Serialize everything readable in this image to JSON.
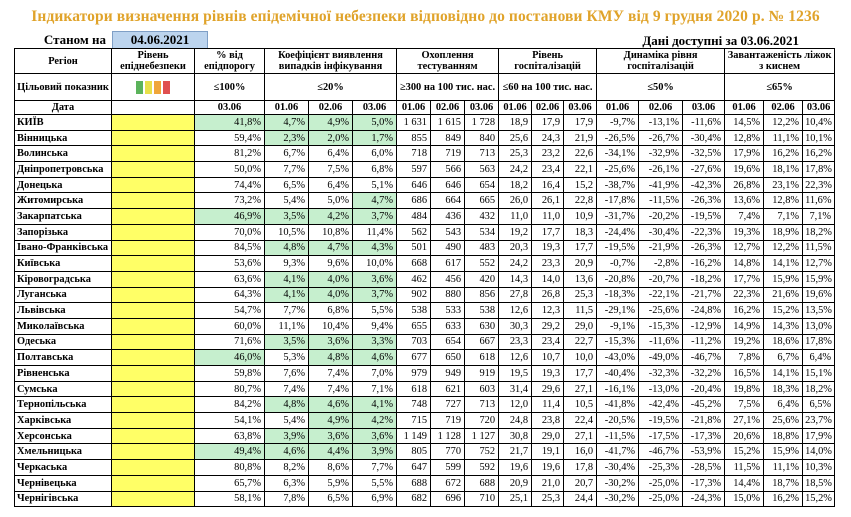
{
  "title": "Індикатори визначення рівнів епідемічної небезпеки відповідно до постанови КМУ від 9 грудня 2020 р. № 1236",
  "as_of_label": "Станом на",
  "as_of_date": "04.06.2021",
  "data_available": "Дані доступні за  03.06.2021",
  "headers": {
    "region": "Регіон",
    "level": "Рівень епіднебезпеки",
    "pct_threshold": "% від епідпорогу",
    "detection": "Коефіцієнт виявлення випадків інфікування",
    "testing": "Охоплення тестуванням",
    "hosp_level": "Рівень госпіталізацій",
    "hosp_dynamics": "Динаміка рівня госпіталізацій",
    "oxygen": "Завантаженість ліжок з киснем",
    "target_label": "Цільовий показник",
    "date_label": "Дата"
  },
  "targets": {
    "pct_threshold": "≤100%",
    "detection": "≤20%",
    "testing": "≥300 на 100 тис. нас.",
    "hosp_level": "≤60 на 100 тис. нас.",
    "hosp_dynamics": "≤50%",
    "oxygen": "≤65%"
  },
  "swatch_colors": [
    "#5bb35b",
    "#e8e04a",
    "#f0a63a",
    "#e05050"
  ],
  "dates": {
    "pct": "03.06",
    "d1": "01.06",
    "d2": "02.06",
    "d3": "03.06"
  },
  "rows": [
    {
      "region": "КИЇВ",
      "pct": "41,8%",
      "pg": true,
      "det": [
        "4,7%",
        "4,9%",
        "5,0%"
      ],
      "dg": [
        true,
        true,
        true
      ],
      "test": [
        "1 631",
        "1 615",
        "1 728"
      ],
      "hosp": [
        "18,9",
        "17,9",
        "17,9"
      ],
      "dyn": [
        "-9,7%",
        "-13,1%",
        "-11,6%"
      ],
      "oxy": [
        "14,5%",
        "12,2%",
        "10,4%"
      ]
    },
    {
      "region": "Вінницька",
      "pct": "59,4%",
      "pg": false,
      "det": [
        "2,3%",
        "2,0%",
        "1,7%"
      ],
      "dg": [
        true,
        true,
        true
      ],
      "test": [
        "855",
        "849",
        "840"
      ],
      "hosp": [
        "25,6",
        "24,3",
        "21,9"
      ],
      "dyn": [
        "-26,5%",
        "-26,7%",
        "-30,4%"
      ],
      "oxy": [
        "12,8%",
        "11,1%",
        "10,1%"
      ]
    },
    {
      "region": "Волинська",
      "pct": "81,2%",
      "pg": false,
      "det": [
        "6,7%",
        "6,4%",
        "6,0%"
      ],
      "dg": [
        false,
        false,
        false
      ],
      "test": [
        "718",
        "719",
        "713"
      ],
      "hosp": [
        "25,3",
        "23,2",
        "22,6"
      ],
      "dyn": [
        "-34,1%",
        "-32,9%",
        "-32,5%"
      ],
      "oxy": [
        "17,9%",
        "16,2%",
        "16,2%"
      ]
    },
    {
      "region": "Дніпропетровська",
      "pct": "50,0%",
      "pg": false,
      "det": [
        "7,7%",
        "7,5%",
        "6,8%"
      ],
      "dg": [
        false,
        false,
        false
      ],
      "test": [
        "597",
        "566",
        "563"
      ],
      "hosp": [
        "24,2",
        "23,4",
        "22,1"
      ],
      "dyn": [
        "-25,6%",
        "-26,1%",
        "-27,6%"
      ],
      "oxy": [
        "19,6%",
        "18,1%",
        "17,8%"
      ]
    },
    {
      "region": "Донецька",
      "pct": "74,4%",
      "pg": false,
      "det": [
        "6,5%",
        "6,4%",
        "5,1%"
      ],
      "dg": [
        false,
        false,
        false
      ],
      "test": [
        "646",
        "646",
        "654"
      ],
      "hosp": [
        "18,2",
        "16,4",
        "15,2"
      ],
      "dyn": [
        "-38,7%",
        "-41,9%",
        "-42,3%"
      ],
      "oxy": [
        "26,8%",
        "23,1%",
        "22,3%"
      ]
    },
    {
      "region": "Житомирська",
      "pct": "73,2%",
      "pg": false,
      "det": [
        "5,4%",
        "5,0%",
        "4,7%"
      ],
      "dg": [
        false,
        false,
        true
      ],
      "test": [
        "686",
        "664",
        "665"
      ],
      "hosp": [
        "26,0",
        "26,1",
        "22,8"
      ],
      "dyn": [
        "-17,8%",
        "-11,5%",
        "-26,3%"
      ],
      "oxy": [
        "13,6%",
        "12,8%",
        "11,6%"
      ]
    },
    {
      "region": "Закарпатська",
      "pct": "46,9%",
      "pg": true,
      "det": [
        "3,5%",
        "4,2%",
        "3,7%"
      ],
      "dg": [
        true,
        true,
        true
      ],
      "test": [
        "484",
        "436",
        "432"
      ],
      "hosp": [
        "11,0",
        "11,0",
        "10,9"
      ],
      "dyn": [
        "-31,7%",
        "-20,2%",
        "-19,5%"
      ],
      "oxy": [
        "7,4%",
        "7,1%",
        "7,1%"
      ]
    },
    {
      "region": "Запорізька",
      "pct": "70,0%",
      "pg": false,
      "det": [
        "10,5%",
        "10,8%",
        "11,4%"
      ],
      "dg": [
        false,
        false,
        false
      ],
      "test": [
        "562",
        "543",
        "534"
      ],
      "hosp": [
        "19,2",
        "17,7",
        "18,3"
      ],
      "dyn": [
        "-24,4%",
        "-30,4%",
        "-22,3%"
      ],
      "oxy": [
        "19,3%",
        "18,9%",
        "18,2%"
      ]
    },
    {
      "region": "Івано-Франківська",
      "pct": "84,5%",
      "pg": false,
      "det": [
        "4,8%",
        "4,7%",
        "4,3%"
      ],
      "dg": [
        true,
        true,
        true
      ],
      "test": [
        "501",
        "490",
        "483"
      ],
      "hosp": [
        "20,3",
        "19,3",
        "17,7"
      ],
      "dyn": [
        "-19,5%",
        "-21,9%",
        "-26,3%"
      ],
      "oxy": [
        "12,7%",
        "12,2%",
        "11,5%"
      ]
    },
    {
      "region": "Київська",
      "pct": "53,6%",
      "pg": false,
      "det": [
        "9,3%",
        "9,6%",
        "10,0%"
      ],
      "dg": [
        false,
        false,
        false
      ],
      "test": [
        "668",
        "617",
        "552"
      ],
      "hosp": [
        "24,2",
        "23,3",
        "20,9"
      ],
      "dyn": [
        "-0,7%",
        "-2,8%",
        "-16,2%"
      ],
      "oxy": [
        "14,8%",
        "14,1%",
        "12,7%"
      ]
    },
    {
      "region": "Кіровоградська",
      "pct": "63,6%",
      "pg": false,
      "det": [
        "4,1%",
        "4,0%",
        "3,6%"
      ],
      "dg": [
        true,
        true,
        true
      ],
      "test": [
        "462",
        "456",
        "420"
      ],
      "hosp": [
        "14,3",
        "14,0",
        "13,6"
      ],
      "dyn": [
        "-20,8%",
        "-20,7%",
        "-18,2%"
      ],
      "oxy": [
        "17,7%",
        "15,9%",
        "15,9%"
      ]
    },
    {
      "region": "Луганська",
      "pct": "64,3%",
      "pg": false,
      "det": [
        "4,1%",
        "4,0%",
        "3,7%"
      ],
      "dg": [
        true,
        true,
        true
      ],
      "test": [
        "902",
        "880",
        "856"
      ],
      "hosp": [
        "27,8",
        "26,8",
        "25,3"
      ],
      "dyn": [
        "-18,3%",
        "-22,1%",
        "-21,7%"
      ],
      "oxy": [
        "22,3%",
        "21,6%",
        "19,6%"
      ]
    },
    {
      "region": "Львівська",
      "pct": "54,7%",
      "pg": false,
      "det": [
        "7,7%",
        "6,8%",
        "5,5%"
      ],
      "dg": [
        false,
        false,
        false
      ],
      "test": [
        "538",
        "533",
        "538"
      ],
      "hosp": [
        "12,6",
        "12,3",
        "11,5"
      ],
      "dyn": [
        "-29,1%",
        "-25,6%",
        "-24,8%"
      ],
      "oxy": [
        "16,2%",
        "15,2%",
        "13,5%"
      ]
    },
    {
      "region": "Миколаївська",
      "pct": "60,0%",
      "pg": false,
      "det": [
        "11,1%",
        "10,4%",
        "9,4%"
      ],
      "dg": [
        false,
        false,
        false
      ],
      "test": [
        "655",
        "633",
        "630"
      ],
      "hosp": [
        "30,3",
        "29,2",
        "29,0"
      ],
      "dyn": [
        "-9,1%",
        "-15,3%",
        "-12,9%"
      ],
      "oxy": [
        "14,9%",
        "14,3%",
        "13,0%"
      ]
    },
    {
      "region": "Одеська",
      "pct": "71,6%",
      "pg": false,
      "det": [
        "3,5%",
        "3,6%",
        "3,3%"
      ],
      "dg": [
        true,
        true,
        true
      ],
      "test": [
        "703",
        "654",
        "667"
      ],
      "hosp": [
        "23,3",
        "23,4",
        "22,7"
      ],
      "dyn": [
        "-15,3%",
        "-11,6%",
        "-11,2%"
      ],
      "oxy": [
        "19,2%",
        "18,6%",
        "17,8%"
      ]
    },
    {
      "region": "Полтавська",
      "pct": "46,0%",
      "pg": true,
      "det": [
        "5,3%",
        "4,8%",
        "4,6%"
      ],
      "dg": [
        false,
        true,
        true
      ],
      "test": [
        "677",
        "650",
        "618"
      ],
      "hosp": [
        "12,6",
        "10,7",
        "10,0"
      ],
      "dyn": [
        "-43,0%",
        "-49,0%",
        "-46,7%"
      ],
      "oxy": [
        "7,8%",
        "6,7%",
        "6,4%"
      ]
    },
    {
      "region": "Рівненська",
      "pct": "59,8%",
      "pg": false,
      "det": [
        "7,6%",
        "7,4%",
        "7,0%"
      ],
      "dg": [
        false,
        false,
        false
      ],
      "test": [
        "979",
        "949",
        "919"
      ],
      "hosp": [
        "19,5",
        "19,3",
        "17,7"
      ],
      "dyn": [
        "-40,4%",
        "-32,3%",
        "-32,2%"
      ],
      "oxy": [
        "16,5%",
        "14,1%",
        "15,1%"
      ]
    },
    {
      "region": "Сумська",
      "pct": "80,7%",
      "pg": false,
      "det": [
        "7,4%",
        "7,4%",
        "7,1%"
      ],
      "dg": [
        false,
        false,
        false
      ],
      "test": [
        "618",
        "621",
        "603"
      ],
      "hosp": [
        "31,4",
        "29,6",
        "27,1"
      ],
      "dyn": [
        "-16,1%",
        "-13,0%",
        "-20,4%"
      ],
      "oxy": [
        "19,8%",
        "18,3%",
        "18,2%"
      ]
    },
    {
      "region": "Тернопільська",
      "pct": "84,2%",
      "pg": false,
      "det": [
        "4,8%",
        "4,6%",
        "4,1%"
      ],
      "dg": [
        true,
        true,
        true
      ],
      "test": [
        "748",
        "727",
        "713"
      ],
      "hosp": [
        "12,0",
        "11,4",
        "10,5"
      ],
      "dyn": [
        "-41,8%",
        "-42,4%",
        "-45,2%"
      ],
      "oxy": [
        "7,5%",
        "6,4%",
        "6,5%"
      ]
    },
    {
      "region": "Харківська",
      "pct": "54,1%",
      "pg": false,
      "det": [
        "5,4%",
        "4,9%",
        "4,2%"
      ],
      "dg": [
        false,
        true,
        true
      ],
      "test": [
        "715",
        "719",
        "720"
      ],
      "hosp": [
        "24,8",
        "23,8",
        "22,4"
      ],
      "dyn": [
        "-20,5%",
        "-19,5%",
        "-21,8%"
      ],
      "oxy": [
        "27,1%",
        "25,6%",
        "23,7%"
      ]
    },
    {
      "region": "Херсонська",
      "pct": "63,8%",
      "pg": false,
      "det": [
        "3,9%",
        "3,6%",
        "3,6%"
      ],
      "dg": [
        true,
        true,
        true
      ],
      "test": [
        "1 149",
        "1 128",
        "1 127"
      ],
      "hosp": [
        "30,8",
        "29,0",
        "27,1"
      ],
      "dyn": [
        "-11,5%",
        "-17,5%",
        "-17,3%"
      ],
      "oxy": [
        "20,6%",
        "18,8%",
        "17,9%"
      ]
    },
    {
      "region": "Хмельницька",
      "pct": "49,4%",
      "pg": true,
      "det": [
        "4,6%",
        "4,4%",
        "3,9%"
      ],
      "dg": [
        true,
        true,
        true
      ],
      "test": [
        "805",
        "770",
        "752"
      ],
      "hosp": [
        "21,7",
        "19,1",
        "16,0"
      ],
      "dyn": [
        "-41,7%",
        "-46,7%",
        "-53,9%"
      ],
      "oxy": [
        "15,2%",
        "15,9%",
        "14,0%"
      ]
    },
    {
      "region": "Черкаська",
      "pct": "80,8%",
      "pg": false,
      "det": [
        "8,2%",
        "8,6%",
        "7,7%"
      ],
      "dg": [
        false,
        false,
        false
      ],
      "test": [
        "647",
        "599",
        "592"
      ],
      "hosp": [
        "19,6",
        "19,6",
        "17,8"
      ],
      "dyn": [
        "-30,4%",
        "-25,3%",
        "-28,5%"
      ],
      "oxy": [
        "11,5%",
        "11,1%",
        "10,3%"
      ]
    },
    {
      "region": "Чернівецька",
      "pct": "65,7%",
      "pg": false,
      "det": [
        "6,3%",
        "5,9%",
        "5,5%"
      ],
      "dg": [
        false,
        false,
        false
      ],
      "test": [
        "688",
        "672",
        "688"
      ],
      "hosp": [
        "20,9",
        "21,0",
        "20,7"
      ],
      "dyn": [
        "-30,2%",
        "-25,0%",
        "-17,3%"
      ],
      "oxy": [
        "14,4%",
        "18,7%",
        "18,5%"
      ]
    },
    {
      "region": "Чернігівська",
      "pct": "58,1%",
      "pg": false,
      "det": [
        "7,8%",
        "6,5%",
        "6,9%"
      ],
      "dg": [
        false,
        false,
        false
      ],
      "test": [
        "682",
        "696",
        "710"
      ],
      "hosp": [
        "25,1",
        "25,3",
        "24,4"
      ],
      "dyn": [
        "-30,2%",
        "-25,0%",
        "-24,3%"
      ],
      "oxy": [
        "15,0%",
        "16,2%",
        "15,2%"
      ]
    }
  ]
}
